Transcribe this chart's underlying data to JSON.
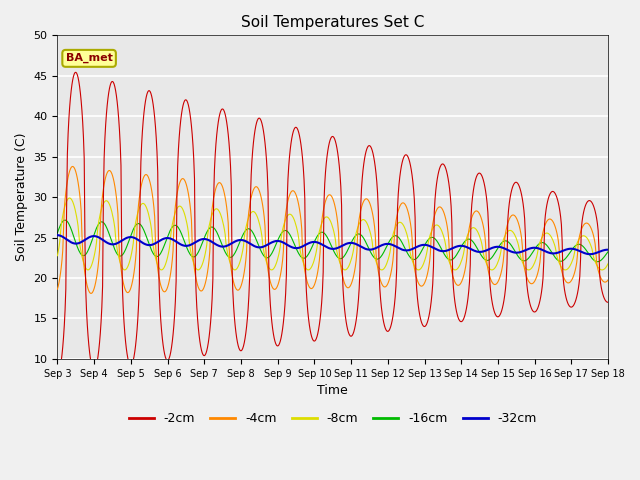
{
  "title": "Soil Temperatures Set C",
  "xlabel": "Time",
  "ylabel": "Soil Temperature (C)",
  "ylim": [
    10,
    50
  ],
  "annotation": "BA_met",
  "legend_labels": [
    "-2cm",
    "-4cm",
    "-8cm",
    "-16cm",
    "-32cm"
  ],
  "legend_colors": [
    "#cc0000",
    "#ff8800",
    "#dddd00",
    "#00bb00",
    "#0000cc"
  ],
  "plot_bg_color": "#e8e8e8",
  "fig_bg_color": "#f0f0f0",
  "grid_color": "#ffffff",
  "x_tick_labels": [
    "Sep 3",
    "Sep 4",
    "Sep 5",
    "Sep 6",
    "Sep 7",
    "Sep 8",
    "Sep 9",
    "Sep 10",
    "Sep 11",
    "Sep 12",
    "Sep 13",
    "Sep 14",
    "Sep 15",
    "Sep 16",
    "Sep 17",
    "Sep 18"
  ],
  "yticks": [
    10,
    15,
    20,
    25,
    30,
    35,
    40,
    45,
    50
  ]
}
